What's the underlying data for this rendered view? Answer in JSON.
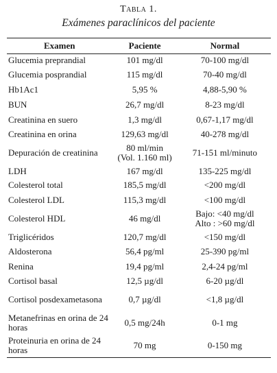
{
  "caption": {
    "label": "Tabla 1.",
    "title": "Exámenes paraclínicos del paciente"
  },
  "columns": [
    "Examen",
    "Paciente",
    "Normal"
  ],
  "rows": [
    {
      "exam": "Glucemia preprandial",
      "patient": "101 mg/dl",
      "normal": "70-100 mg/dl"
    },
    {
      "exam": "Glucemia posprandial",
      "patient": "115 mg/dl",
      "normal": "70-40 mg/dl"
    },
    {
      "exam": "Hb1Ac1",
      "patient": "5,95 %",
      "normal": "4,88-5,90 %"
    },
    {
      "exam": "BUN",
      "patient": "26,7 mg/dl",
      "normal": "8-23 mg/dl"
    },
    {
      "exam": "Creatinina en suero",
      "patient": "1,3 mg/dl",
      "normal": "0,67-1,17 mg/dl"
    },
    {
      "exam": "Creatinina en orina",
      "patient": "129,63 mg/dl",
      "normal": "40-278 mg/dl"
    },
    {
      "exam": "Depuración de creatinina",
      "patient": "80 ml/min",
      "patient2": "(Vol. 1.160 ml)",
      "normal": "71-151 ml/minuto"
    },
    {
      "exam": "LDH",
      "patient": "167 mg/dl",
      "normal": "135-225 mg/dl"
    },
    {
      "exam": "Colesterol total",
      "patient": "185,5 mg/dl",
      "normal": "<200 mg/dl"
    },
    {
      "exam": "Colesterol LDL",
      "patient": "115,3 mg/dl",
      "normal": "<100 mg/dl"
    },
    {
      "exam": "Colesterol HDL",
      "patient": "46 mg/dl",
      "normal": "Bajo: <40 mg/dl",
      "normal2": "Alto : >60 mg/dl"
    },
    {
      "exam": "Triglicéridos",
      "patient": "120,7 mg/dl",
      "normal": "<150 mg/dl"
    },
    {
      "exam": "Aldosterona",
      "patient": "56,4 pg/ml",
      "normal": "25-390 pg/ml"
    },
    {
      "exam": "Renina",
      "patient": "19,4 pg/ml",
      "normal": "2,4-24 pg/ml"
    },
    {
      "exam": "Cortisol basal",
      "patient": "12,5 µg/dl",
      "normal": "6-20 µg/dl"
    },
    {
      "exam": "Cortisol posdexametasona",
      "patient": "0,7 µg/dl",
      "normal": "<1,8 µg/dl"
    },
    {
      "exam": "Metanefrinas en orina de 24 horas",
      "patient": "0,5 mg/24h",
      "normal": "0-1 mg"
    },
    {
      "exam": "Proteinuria en orina de 24 horas",
      "patient": "70 mg",
      "normal": "0-150 mg"
    }
  ]
}
